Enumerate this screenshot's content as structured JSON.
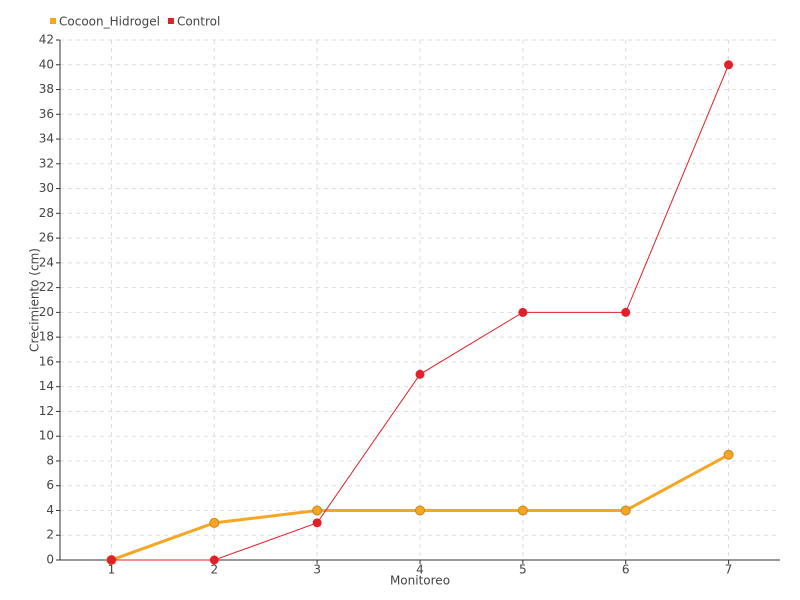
{
  "chart_data": {
    "type": "line",
    "x_label": "Monitoreo",
    "y_label": "Crecimiento (cm)",
    "x": [
      1,
      2,
      3,
      4,
      5,
      6,
      7
    ],
    "series": [
      {
        "name": "Cocoon_Hidrogel",
        "color": "#f5a623",
        "values": [
          0,
          3,
          4,
          4,
          4,
          4,
          8.5
        ]
      },
      {
        "name": "Control",
        "color": "#e0202a",
        "values": [
          0,
          0,
          3,
          15,
          20,
          20,
          40
        ]
      }
    ],
    "xlim": [
      0.5,
      7.5
    ],
    "xticks": [
      1,
      2,
      3,
      4,
      5,
      6,
      7
    ],
    "ylim": [
      0,
      42
    ],
    "yticks": [
      0,
      2,
      4,
      6,
      8,
      10,
      12,
      14,
      16,
      18,
      20,
      22,
      24,
      26,
      28,
      30,
      32,
      34,
      36,
      38,
      40,
      42
    ],
    "grid": true,
    "legend": "top-left"
  }
}
